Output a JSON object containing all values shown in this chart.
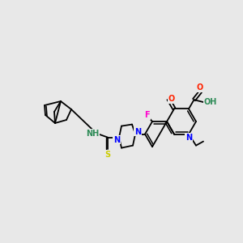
{
  "background_color": "#e8e8e8",
  "figsize": [
    3.0,
    3.0
  ],
  "dpi": 100,
  "atom_colors": {
    "N": "#0000ff",
    "O": "#ff2200",
    "F": "#ff00cc",
    "S": "#cccc00",
    "NH": "#2e8b57",
    "HO": "#2e8b57",
    "C": "#000000"
  },
  "bond_lw": 1.3,
  "double_off": 2.2,
  "font_size": 7.0
}
